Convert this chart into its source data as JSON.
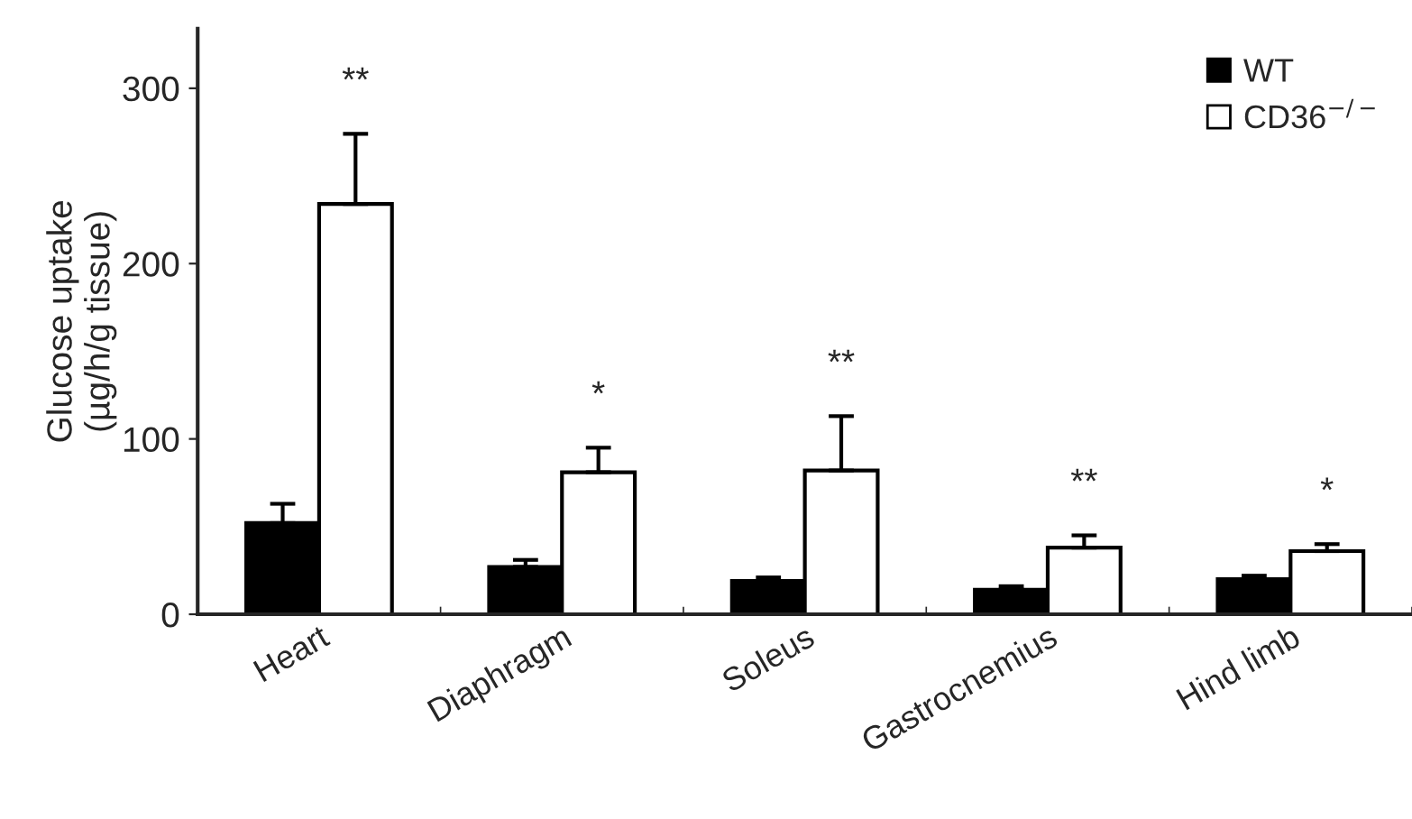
{
  "chart_data": {
    "type": "bar",
    "ylabel": "Glucose uptake\n(µg/h/g tissue)",
    "categories": [
      "Heart",
      "Diaphragm",
      "Soleus",
      "Gastrocnemius",
      "Hind limb"
    ],
    "series": [
      {
        "name": "WT",
        "color": "#000000",
        "values": [
          52,
          27,
          19,
          14,
          20
        ],
        "errors": [
          [
            52,
            63
          ],
          [
            27,
            31
          ],
          [
            19,
            21
          ],
          [
            14,
            16
          ],
          [
            20,
            22
          ]
        ]
      },
      {
        "name": "CD36$^{−/−}$",
        "color": "#ffffff",
        "values": [
          234,
          81,
          82,
          38,
          36
        ],
        "errors": [
          [
            234,
            274
          ],
          [
            81,
            95
          ],
          [
            82,
            113
          ],
          [
            38,
            45
          ],
          [
            36,
            40
          ]
        ]
      }
    ],
    "ylim": [
      0,
      334
    ],
    "yticks": [
      0,
      100,
      200,
      300
    ],
    "annotations": [
      "**",
      "*",
      "**",
      "**",
      "*"
    ],
    "legend": "top right",
    "grid": false
  }
}
